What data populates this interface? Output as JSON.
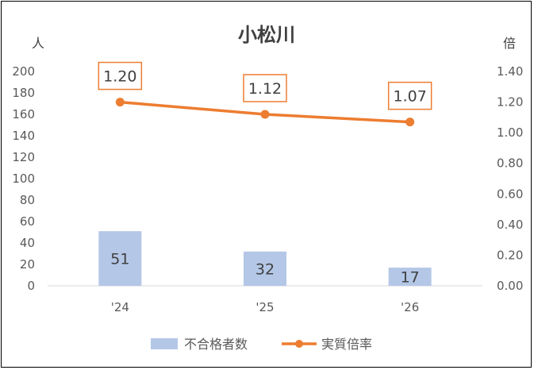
{
  "chart_data": {
    "type": "bar+line",
    "title": "小松川",
    "categories": [
      "'24",
      "'25",
      "'26"
    ],
    "left_axis": {
      "unit": "人",
      "min": 0,
      "max": 200,
      "step": 20,
      "ticks": [
        "0",
        "20",
        "40",
        "60",
        "80",
        "100",
        "120",
        "140",
        "160",
        "180",
        "200"
      ]
    },
    "right_axis": {
      "unit": "倍",
      "min": 0,
      "max": 1.4,
      "step": 0.2,
      "ticks": [
        "0.00",
        "0.20",
        "0.40",
        "0.60",
        "0.80",
        "1.00",
        "1.20",
        "1.40"
      ]
    },
    "series": [
      {
        "name": "不合格者数",
        "type": "bar",
        "axis": "left",
        "color": "#b4c7e7",
        "values": [
          51,
          32,
          17
        ],
        "labels": [
          "51",
          "32",
          "17"
        ]
      },
      {
        "name": "実質倍率",
        "type": "line",
        "axis": "right",
        "color": "#ed7d31",
        "values": [
          1.2,
          1.12,
          1.07
        ],
        "labels": [
          "1.20",
          "1.12",
          "1.07"
        ]
      }
    ],
    "legend_position": "bottom",
    "grid": false
  }
}
